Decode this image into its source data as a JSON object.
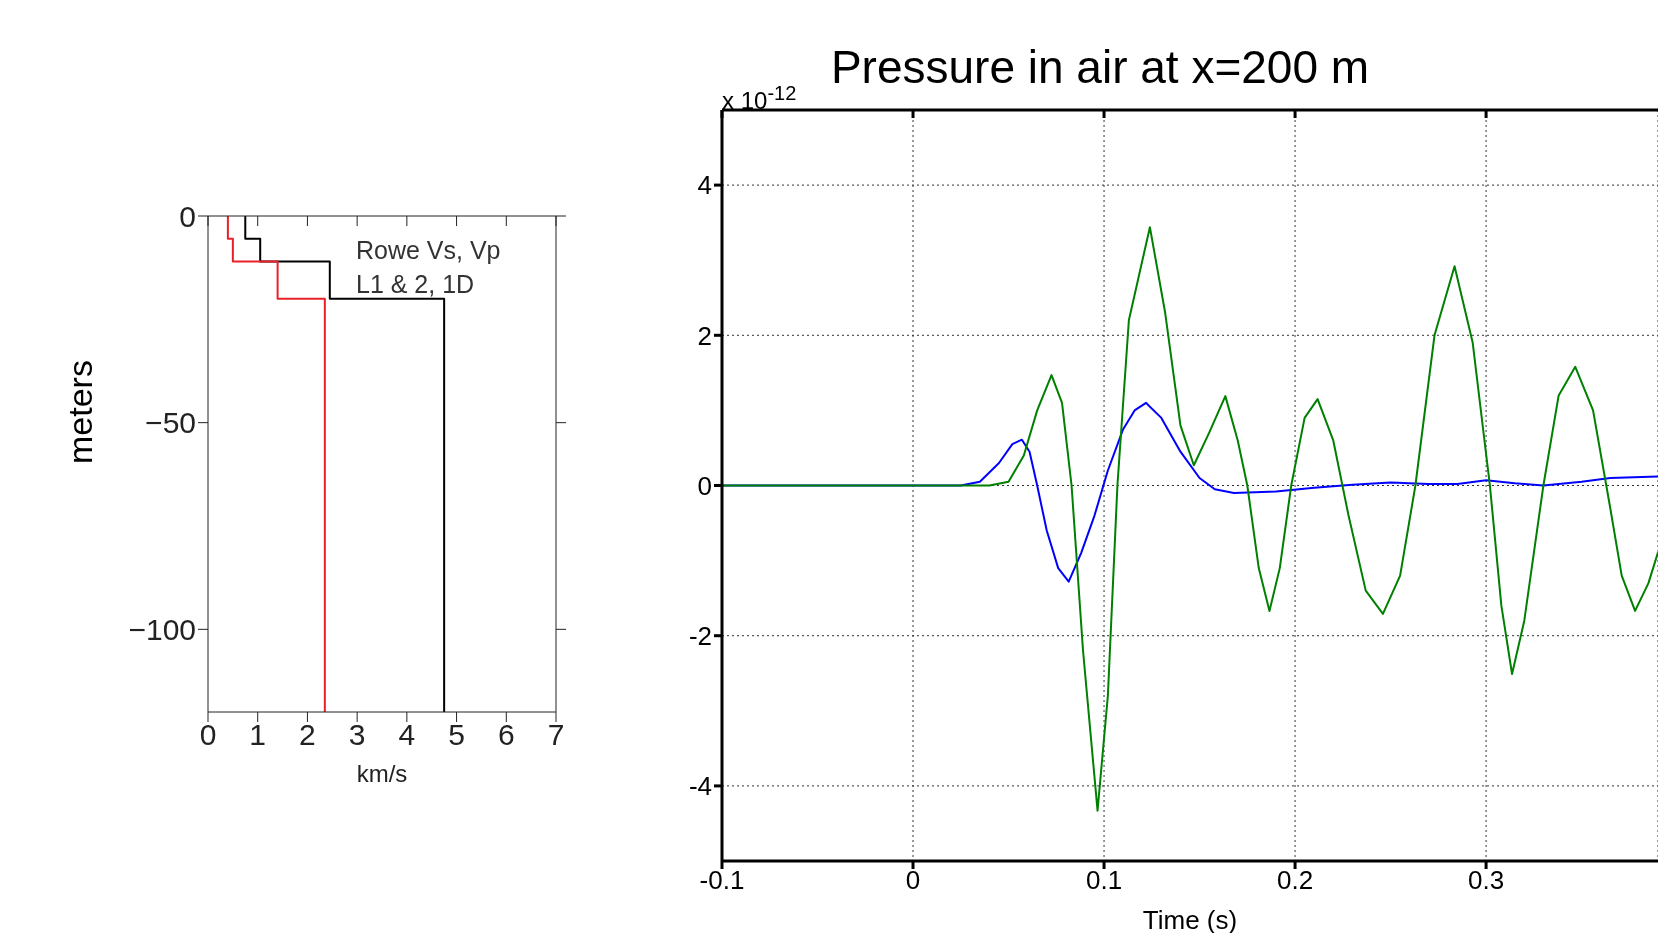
{
  "chart_data": [
    {
      "type": "line",
      "xlabel": "km/s",
      "ylabel": "meters",
      "annotations": [
        "Rowe Vs, Vp",
        "L1 & 2, 1D"
      ],
      "xlim": [
        0,
        7
      ],
      "xticks": [
        0,
        1,
        2,
        3,
        4,
        5,
        6,
        7
      ],
      "ylim": [
        -120,
        0
      ],
      "yticks": [
        0,
        {
          "value": -50,
          "label": "−50"
        },
        {
          "value": -100,
          "label": "−100"
        }
      ],
      "grid": false,
      "series": [
        {
          "color": "#000000",
          "x": [
            0.75,
            0.75,
            1.05,
            1.05,
            2.45,
            2.45,
            4.75,
            4.75
          ],
          "values": [
            0,
            -5.5,
            -5.5,
            -11,
            -11,
            -20,
            -20,
            -120
          ]
        },
        {
          "color": "#e8202a",
          "x": [
            0.4,
            0.4,
            0.5,
            0.5,
            1.4,
            1.4,
            2.35,
            2.35
          ],
          "values": [
            0,
            -5.5,
            -5.5,
            -11,
            -11,
            -20,
            -20,
            -120
          ]
        }
      ]
    },
    {
      "type": "line",
      "title": "Pressure in air at x=200 m",
      "xlabel": "Time (s)",
      "annotations": [
        "x 10$^{-12}$"
      ],
      "xlim": [
        -0.1,
        0.39
      ],
      "xticks": [
        -0.1,
        0,
        0.1,
        0.2,
        0.3
      ],
      "ylim": [
        -5,
        5
      ],
      "yticks": [
        -4,
        -2,
        0,
        2,
        4
      ],
      "grid": true,
      "series": [
        {
          "color": "#0000ff",
          "x": [
            -0.1,
            0.025,
            0.035,
            0.045,
            0.052,
            0.057,
            0.061,
            0.065,
            0.07,
            0.076,
            0.0815,
            0.088,
            0.095,
            0.102,
            0.11,
            0.116,
            0.122,
            0.13,
            0.14,
            0.15,
            0.158,
            0.168,
            0.19,
            0.21,
            0.23,
            0.25,
            0.27,
            0.285,
            0.3,
            0.315,
            0.33,
            0.35,
            0.365,
            0.39
          ],
          "values": [
            0,
            0,
            0.05,
            0.3,
            0.55,
            0.61,
            0.45,
            0,
            -0.6,
            -1.1,
            -1.28,
            -0.9,
            -0.4,
            0.2,
            0.75,
            1.0,
            1.1,
            0.9,
            0.45,
            0.1,
            -0.05,
            -0.1,
            -0.08,
            -0.03,
            0.01,
            0.04,
            0.02,
            0.02,
            0.07,
            0.03,
            0,
            0.05,
            0.1,
            0.12
          ]
        },
        {
          "color": "#008000",
          "x": [
            -0.1,
            0.04,
            0.05,
            0.058,
            0.065,
            0.0725,
            0.078,
            0.083,
            0.089,
            0.0966,
            0.102,
            0.107,
            0.113,
            0.124,
            0.132,
            0.14,
            0.147,
            0.155,
            0.1635,
            0.17,
            0.175,
            0.181,
            0.1866,
            0.192,
            0.198,
            0.205,
            0.2118,
            0.22,
            0.228,
            0.237,
            0.246,
            0.255,
            0.263,
            0.273,
            0.2835,
            0.293,
            0.302,
            0.308,
            0.3136,
            0.32,
            0.33,
            0.338,
            0.3467,
            0.356,
            0.365,
            0.371,
            0.378,
            0.385,
            0.39
          ],
          "values": [
            0,
            0,
            0.05,
            0.4,
            1.0,
            1.47,
            1.1,
            0,
            -2.2,
            -4.33,
            -2.8,
            0,
            2.2,
            3.44,
            2.3,
            0.8,
            0.27,
            0.7,
            1.19,
            0.6,
            0,
            -1.1,
            -1.67,
            -1.1,
            0,
            0.9,
            1.15,
            0.6,
            -0.4,
            -1.4,
            -1.71,
            -1.2,
            0,
            2.0,
            2.92,
            1.9,
            0,
            -1.6,
            -2.51,
            -1.8,
            0,
            1.2,
            1.58,
            1.0,
            -0.3,
            -1.2,
            -1.67,
            -1.3,
            -0.89
          ]
        }
      ]
    }
  ]
}
